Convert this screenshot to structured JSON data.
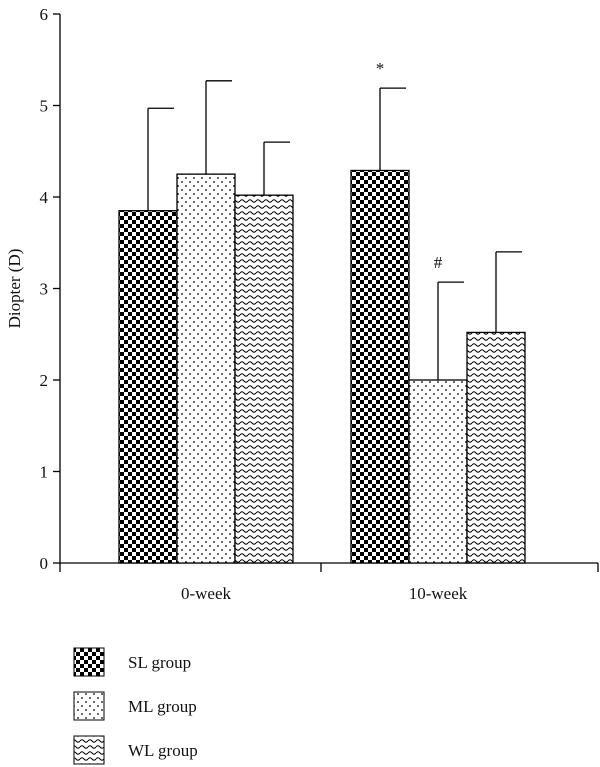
{
  "chart_data": {
    "type": "bar",
    "categories": [
      "0-week",
      "10-week"
    ],
    "ylabel": "Diopter (D)",
    "xlabel": "",
    "ylim": [
      0,
      6
    ],
    "yticks": [
      0,
      1,
      2,
      3,
      4,
      5,
      6
    ],
    "series": [
      {
        "name": "SL group",
        "values": [
          3.85,
          4.29
        ],
        "errors": [
          1.12,
          0.9
        ],
        "pattern": "checker"
      },
      {
        "name": "ML group",
        "values": [
          4.25,
          2.0
        ],
        "errors": [
          1.02,
          1.07
        ],
        "pattern": "dots"
      },
      {
        "name": "WL group",
        "values": [
          4.02,
          2.52
        ],
        "errors": [
          0.58,
          0.88
        ],
        "pattern": "waves"
      }
    ],
    "annotations": [
      {
        "text": "*",
        "category": "10-week",
        "series": "SL group"
      },
      {
        "text": "#",
        "category": "10-week",
        "series": "ML group"
      }
    ],
    "legend_position": "bottom-left",
    "grid": false
  }
}
